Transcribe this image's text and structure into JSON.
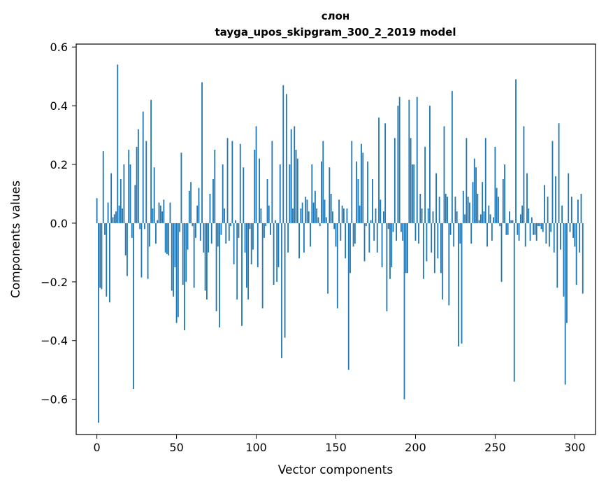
{
  "chart_data": {
    "type": "bar",
    "title": "слон",
    "subtitle": "tayga_upos_skipgram_300_2_2019 model",
    "xlabel": "Vector components",
    "ylabel": "Components values",
    "xlim": [
      -13,
      313
    ],
    "ylim": [
      -0.72,
      0.61
    ],
    "x_ticks": [
      0,
      50,
      100,
      150,
      200,
      250,
      300
    ],
    "y_ticks": [
      -0.6,
      -0.4,
      -0.2,
      0.0,
      0.2,
      0.4,
      0.6
    ],
    "y_tick_labels": [
      "−0.6",
      "−0.4",
      "−0.2",
      "0.0",
      "0.2",
      "0.4",
      "0.6"
    ],
    "x_tick_labels": [
      "0",
      "50",
      "100",
      "150",
      "200",
      "250",
      "300"
    ],
    "bar_color": "#1f77b4",
    "grid": false,
    "legend": "none",
    "values": [
      0.085,
      -0.68,
      -0.22,
      -0.225,
      0.245,
      -0.04,
      -0.25,
      0.07,
      -0.27,
      0.17,
      0.02,
      0.03,
      0.04,
      0.54,
      0.06,
      0.15,
      0.05,
      0.2,
      -0.11,
      -0.18,
      0.25,
      0.2,
      -0.05,
      -0.565,
      0.13,
      0.26,
      0.32,
      -0.02,
      -0.185,
      0.38,
      -0.02,
      0.28,
      -0.19,
      -0.08,
      0.42,
      0.05,
      0.19,
      -0.07,
      0.01,
      0.07,
      0.06,
      0.04,
      0.08,
      -0.1,
      -0.105,
      -0.11,
      0.07,
      -0.23,
      -0.25,
      -0.15,
      -0.34,
      -0.32,
      -0.03,
      0.24,
      -0.21,
      -0.365,
      -0.2,
      -0.09,
      0.11,
      0.14,
      -0.01,
      -0.22,
      -0.05,
      0.06,
      0.12,
      -0.06,
      0.48,
      -0.1,
      -0.23,
      -0.26,
      -0.1,
      0.1,
      -0.07,
      0.15,
      0.25,
      -0.3,
      -0.08,
      -0.355,
      -0.04,
      0.2,
      0.05,
      -0.07,
      0.29,
      -0.06,
      -0.01,
      0.28,
      -0.14,
      0.01,
      -0.26,
      -0.05,
      0.27,
      -0.35,
      0.19,
      -0.1,
      -0.22,
      -0.26,
      -0.02,
      -0.14,
      -0.09,
      0.25,
      0.33,
      -0.15,
      0.22,
      0.05,
      -0.29,
      -0.05,
      -0.01,
      0.15,
      0.06,
      -0.04,
      0.28,
      -0.21,
      0.01,
      -0.2,
      -0.15,
      0.2,
      -0.46,
      0.47,
      -0.39,
      0.44,
      -0.1,
      0.2,
      0.32,
      0.05,
      0.33,
      0.25,
      0.22,
      -0.12,
      0.05,
      0.07,
      -0.1,
      0.09,
      0.08,
      0.04,
      -0.08,
      0.2,
      0.07,
      0.11,
      0.05,
      0.02,
      -0.01,
      0.21,
      0.28,
      0.08,
      0.02,
      -0.24,
      0.19,
      0.1,
      0.04,
      -0.02,
      -0.08,
      -0.29,
      0.08,
      -0.06,
      0.06,
      0.05,
      -0.12,
      0.05,
      -0.5,
      -0.17,
      0.28,
      -0.08,
      -0.07,
      0.21,
      0.15,
      0.06,
      0.27,
      0.24,
      -0.13,
      -0.01,
      0.21,
      -0.1,
      0.01,
      0.15,
      -0.06,
      0.05,
      -0.1,
      0.36,
      0.08,
      -0.15,
      0.04,
      0.34,
      -0.3,
      -0.02,
      -0.19,
      -0.15,
      -0.03,
      0.29,
      -0.06,
      0.4,
      0.43,
      -0.03,
      -0.06,
      -0.6,
      -0.17,
      -0.17,
      0.42,
      0.29,
      0.2,
      0.2,
      -0.06,
      0.43,
      -0.07,
      0.1,
      0.05,
      -0.19,
      0.26,
      -0.13,
      0.05,
      0.4,
      -0.1,
      0.04,
      -0.17,
      0.17,
      -0.12,
      0.09,
      -0.17,
      -0.26,
      0.33,
      0.1,
      0.09,
      -0.28,
      -0.04,
      0.45,
      -0.08,
      0.09,
      0.04,
      -0.42,
      -0.07,
      -0.41,
      0.11,
      0.03,
      0.29,
      0.09,
      0.07,
      -0.07,
      0.14,
      0.22,
      0.19,
      0.1,
      0.01,
      0.03,
      0.14,
      0.04,
      0.29,
      -0.08,
      0.06,
      0.03,
      -0.06,
      0.02,
      0.26,
      0.12,
      0.09,
      -0.01,
      -0.2,
      0.15,
      0.2,
      -0.04,
      -0.04,
      0.04,
      0.01,
      0.01,
      -0.54,
      0.49,
      -0.04,
      -0.06,
      0.03,
      0.06,
      0.33,
      -0.08,
      0.17,
      0.05,
      -0.06,
      0.02,
      -0.04,
      -0.04,
      -0.06,
      -0.01,
      -0.01,
      -0.02,
      -0.03,
      0.13,
      -0.07,
      0.09,
      -0.08,
      -0.03,
      0.28,
      -0.1,
      0.16,
      -0.22,
      0.34,
      -0.09,
      0.06,
      -0.25,
      -0.55,
      -0.34,
      0.17,
      -0.03,
      0.09,
      -0.05,
      -0.08,
      -0.21,
      0.08,
      -0.1,
      0.1,
      -0.24
    ]
  }
}
